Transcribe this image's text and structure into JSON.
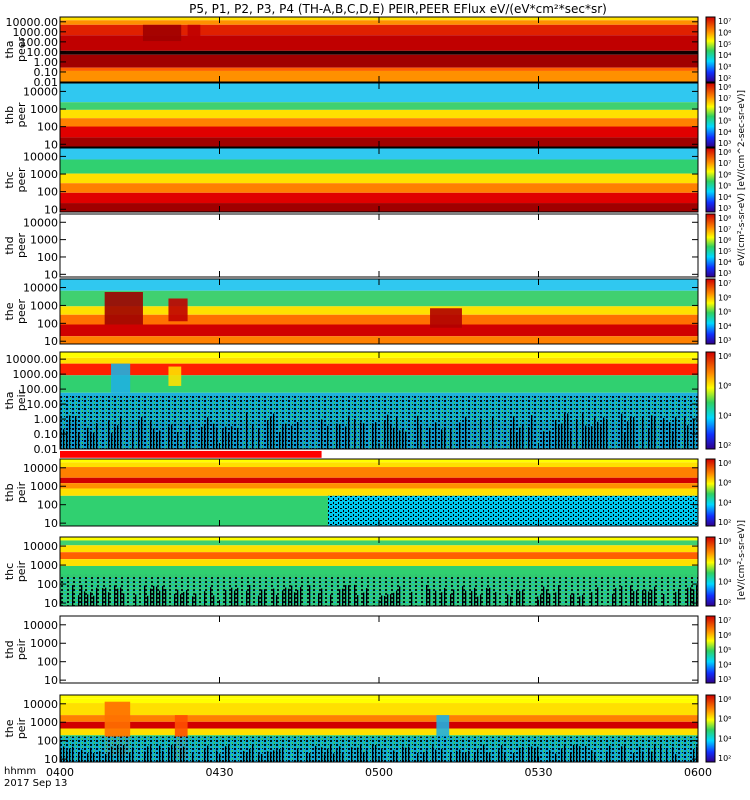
{
  "chart_data": {
    "type": "heatmap",
    "title": "P5, P1, P2, P3, P4 (TH-A,B,C,D,E) PEIR,PEER EFlux eV/(eV*cm²*sec*sr)",
    "x_ticks": [
      "0400",
      "0430",
      "0500",
      "0530",
      "0600"
    ],
    "x_range_hhmm": [
      "0400",
      "0600"
    ],
    "corner_label_line1": "hhmm",
    "corner_label_line2": "2017 Sep 13",
    "y_scale": "log",
    "panels": [
      {
        "probe": "tha",
        "species": "peer",
        "ylabel": "tha\npeer",
        "yticks": [
          "10000.00",
          "1000.00",
          "100.00",
          "10.00",
          "1.00",
          "0.10",
          "0.01"
        ],
        "ylim": [
          0.01,
          30000
        ],
        "cbar_ticks": [
          "10⁷",
          "10⁶",
          "10⁵",
          "10⁴",
          "10³",
          "10²"
        ],
        "cbar_exp_range": [
          2,
          7
        ],
        "has_data": true
      },
      {
        "probe": "thb",
        "species": "peer",
        "ylabel": "thb\npeer",
        "yticks": [
          "10000",
          "1000",
          "100",
          "10"
        ],
        "ylim": [
          7,
          30000
        ],
        "cbar_ticks": [
          "10⁸",
          "10⁷",
          "10⁶",
          "10⁵",
          "10⁴",
          "10³"
        ],
        "cbar_exp_range": [
          3,
          8
        ],
        "has_data": true
      },
      {
        "probe": "thc",
        "species": "peer",
        "ylabel": "thc\npeer",
        "yticks": [
          "10000",
          "1000",
          "100",
          "10"
        ],
        "ylim": [
          7,
          30000
        ],
        "cbar_ticks": [
          "10⁸",
          "10⁷",
          "10⁶",
          "10⁵",
          "10⁴",
          "10³"
        ],
        "cbar_exp_range": [
          3,
          8
        ],
        "has_data": true
      },
      {
        "probe": "thd",
        "species": "peer",
        "ylabel": "thd\npeer",
        "yticks": [
          "10000",
          "1000",
          "100",
          "10"
        ],
        "ylim": [
          7,
          30000
        ],
        "cbar_ticks": [
          "10⁸",
          "10⁷",
          "10⁶",
          "10⁵",
          "10⁴",
          "10³"
        ],
        "cbar_exp_range": [
          3,
          8
        ],
        "has_data": false
      },
      {
        "probe": "the",
        "species": "peer",
        "ylabel": "the\npeer",
        "yticks": [
          "10000",
          "1000",
          "100",
          "10"
        ],
        "ylim": [
          7,
          30000
        ],
        "cbar_ticks": [
          "10⁷",
          "10⁶",
          "10⁵",
          "10⁴",
          "10³"
        ],
        "cbar_exp_range": [
          3,
          7
        ],
        "has_data": true
      },
      {
        "probe": "tha",
        "species": "peir",
        "ylabel": "tha\npeir",
        "yticks": [
          "10000.00",
          "1000.00",
          "100.00",
          "10.00",
          "1.00",
          "0.10",
          "0.01"
        ],
        "ylim": [
          0.01,
          30000
        ],
        "cbar_ticks": [
          "10⁸",
          "10⁶",
          "10⁴",
          "10²"
        ],
        "cbar_exp_range": [
          1,
          8
        ],
        "has_data": true
      },
      {
        "probe": "thb",
        "species": "peir",
        "ylabel": "thb\npeir",
        "yticks": [
          "10000",
          "1000",
          "100",
          "10"
        ],
        "ylim": [
          7,
          30000
        ],
        "cbar_ticks": [
          "10⁸",
          "10⁶",
          "10⁴",
          "10²"
        ],
        "cbar_exp_range": [
          1,
          8
        ],
        "has_data": true
      },
      {
        "probe": "thc",
        "species": "peir",
        "ylabel": "thc\npeir",
        "yticks": [
          "10000",
          "1000",
          "100",
          "10"
        ],
        "ylim": [
          7,
          30000
        ],
        "cbar_ticks": [
          "10⁸",
          "10⁶",
          "10⁴",
          "10²"
        ],
        "cbar_exp_range": [
          1,
          8
        ],
        "has_data": true
      },
      {
        "probe": "thd",
        "species": "peir",
        "ylabel": "thd\npeir",
        "yticks": [
          "10000",
          "1000",
          "100",
          "10"
        ],
        "ylim": [
          7,
          30000
        ],
        "cbar_ticks": [
          "10⁷",
          "10⁶",
          "10⁵",
          "10⁴",
          "10³"
        ],
        "cbar_exp_range": [
          3,
          7
        ],
        "has_data": false
      },
      {
        "probe": "the",
        "species": "peir",
        "ylabel": "the\npeir",
        "yticks": [
          "10000",
          "1000",
          "100",
          "10"
        ],
        "ylim": [
          7,
          30000
        ],
        "cbar_ticks": [
          "10⁸",
          "10⁶",
          "10⁴",
          "10²"
        ],
        "cbar_exp_range": [
          1,
          8
        ],
        "has_data": true
      }
    ],
    "cbar_label_peer": "eV/(cm²-s-sr-eV)  [eV/(cm^2-sec-sr-eV)]",
    "cbar_label_peir": "[eV/(cm²-s-sr-eV)]",
    "colors": {
      "low": "#2020a0",
      "mid": "#00e0ff",
      "green": "#30d070",
      "yellow": "#ffff00",
      "orange": "#ff8000",
      "red": "#e00000",
      "high": "#900000"
    }
  }
}
